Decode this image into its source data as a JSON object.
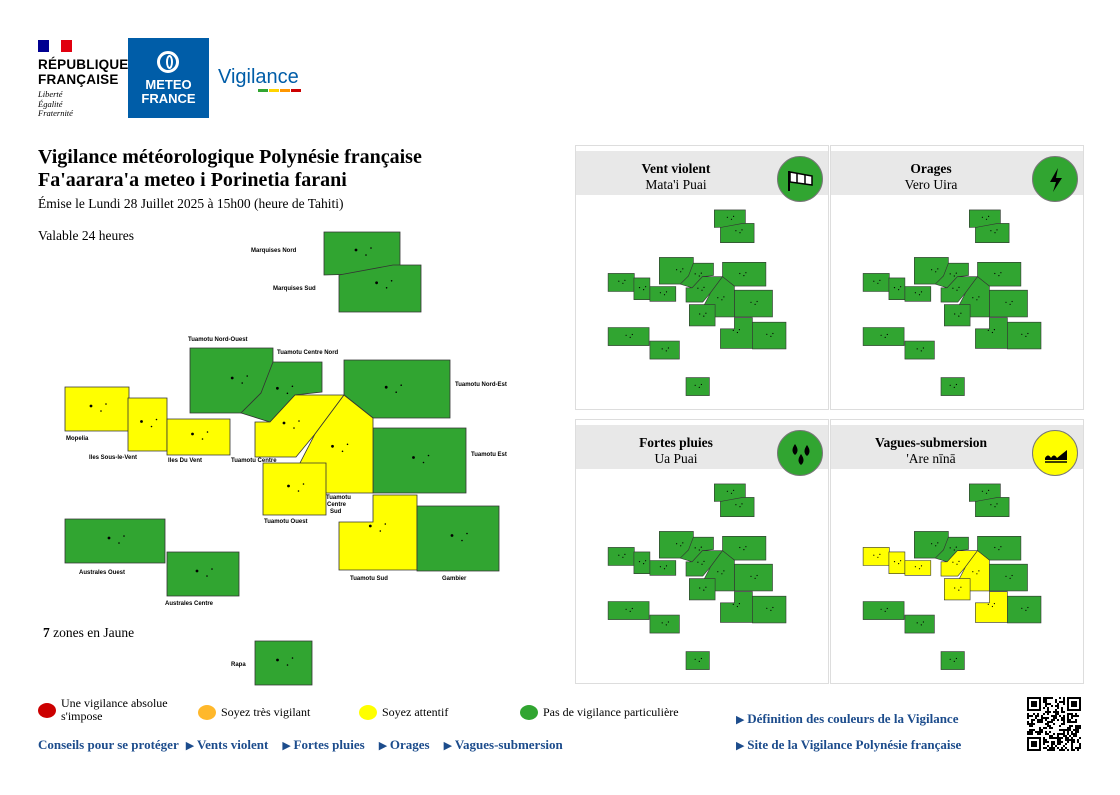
{
  "header": {
    "republique": [
      "RÉPUBLIQUE",
      "FRANÇAISE"
    ],
    "motto": [
      "Liberté",
      "Égalité",
      "Fraternité"
    ],
    "meteo": [
      "METEO",
      "FRANCE"
    ],
    "vigilance_logo": "Vigilance"
  },
  "title_line1": "Vigilance météorologique Polynésie française",
  "title_line2": "Fa'aarara'a meteo i Porinetia farani",
  "issued": "Émise le Lundi 28 Juillet 2025 à 15h00 (heure de Tahiti)",
  "validity": "Valable 24 heures",
  "yellow_count": {
    "number": "7",
    "text": "zones en Jaune"
  },
  "colors": {
    "green": "#31a531",
    "yellow": "#ffff00",
    "orange": "#ffb82b",
    "red": "#cc0000"
  },
  "zones": [
    {
      "name": "Marquises Nord",
      "level": "green"
    },
    {
      "name": "Marquises Sud",
      "level": "green"
    },
    {
      "name": "Tuamotu Nord-Ouest",
      "level": "green"
    },
    {
      "name": "Tuamotu Centre Nord",
      "level": "green"
    },
    {
      "name": "Tuamotu Nord-Est",
      "level": "green"
    },
    {
      "name": "Mopelia",
      "level": "yellow"
    },
    {
      "name": "Iles Sous-le-Vent",
      "level": "yellow"
    },
    {
      "name": "Iles Du Vent",
      "level": "yellow"
    },
    {
      "name": "Tuamotu Centre",
      "level": "yellow"
    },
    {
      "name": "Tuamotu Est",
      "level": "green"
    },
    {
      "name": "Tuamotu Centre Sud",
      "level": "yellow"
    },
    {
      "name": "Tuamotu Ouest",
      "level": "yellow"
    },
    {
      "name": "Australes Ouest",
      "level": "green"
    },
    {
      "name": "Australes Centre",
      "level": "green"
    },
    {
      "name": "Tuamotu Sud",
      "level": "yellow"
    },
    {
      "name": "Gambier",
      "level": "green"
    },
    {
      "name": "Rapa",
      "level": "green"
    }
  ],
  "panels": [
    {
      "title": "Vent violent",
      "subtitle": "Mata'i Puai",
      "icon": "windsock-icon",
      "icon_color": "#31a531",
      "yellow_zones": []
    },
    {
      "title": "Orages",
      "subtitle": "Vero Uira",
      "icon": "lightning-icon",
      "icon_color": "#31a531",
      "yellow_zones": []
    },
    {
      "title": "Fortes pluies",
      "subtitle": "Ua Puai",
      "icon": "raindrops-icon",
      "icon_color": "#31a531",
      "yellow_zones": []
    },
    {
      "title": "Vagues-submersion",
      "subtitle": "'Are nīnā",
      "icon": "wave-icon",
      "icon_color": "#ffff00",
      "yellow_zones": [
        "Mopelia",
        "Iles Sous-le-Vent",
        "Iles Du Vent",
        "Tuamotu Centre",
        "Tuamotu Centre Sud",
        "Tuamotu Ouest",
        "Tuamotu Sud"
      ]
    }
  ],
  "legend": [
    {
      "label": "Une vigilance absolue s'impose",
      "color": "#cc0000"
    },
    {
      "label": "Soyez très vigilant",
      "color": "#ffb82b"
    },
    {
      "label": "Soyez attentif",
      "color": "#ffff00"
    },
    {
      "label": "Pas de vigilance particulière",
      "color": "#31a531"
    }
  ],
  "links": {
    "conseils": "Conseils pour se protéger",
    "vents": "Vents violent",
    "pluies": "Fortes pluies",
    "orages": "Orages",
    "vagues": "Vagues-submersion",
    "definition": "Définition des couleurs de la Vigilance",
    "site": "Site de la Vigilance Polynésie française"
  }
}
